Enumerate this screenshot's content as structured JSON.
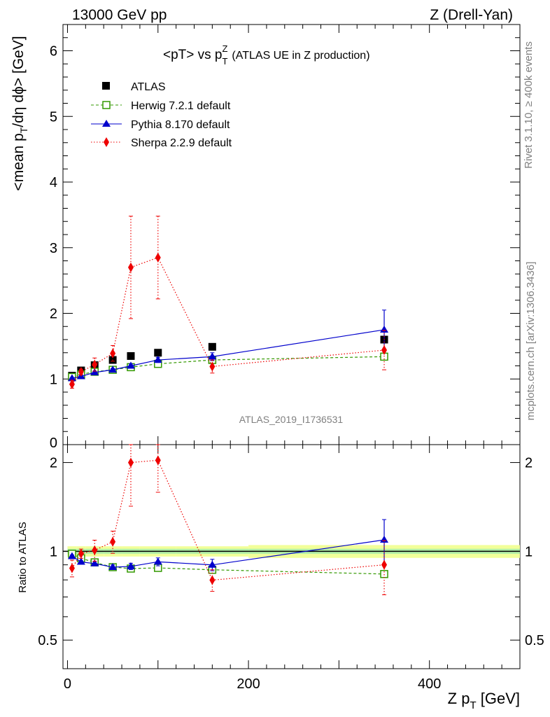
{
  "header": {
    "left": "13000 GeV pp",
    "right": "Z (Drell-Yan)"
  },
  "side": {
    "rivet": "Rivet 3.1.10, ≥ 400k events",
    "mcplots": "mcplots.cern.ch [arXiv:1306.3436]"
  },
  "chart_data": {
    "type": "scatter",
    "title_main": "<pT> vs p",
    "title_sup": "Z",
    "title_sub": "T",
    "title_note": "(ATLAS UE in Z production)",
    "analysis_id": "ATLAS_2019_I1736531",
    "ylabel_main": {
      "a": "<mean p",
      "sub": "T",
      "b": "/dη dϕ> [GeV]"
    },
    "ylabel_ratio": "Ratio to ATLAS",
    "xlabel": {
      "a": "Z p",
      "sub": "T",
      "b": " [GeV]"
    },
    "xlim": [
      -5,
      500
    ],
    "ylim_main": [
      0,
      6.4
    ],
    "ylim_ratio": [
      0.4,
      2.3
    ],
    "x_ticks": [
      "0",
      "200",
      "400"
    ],
    "y_ticks_main": [
      "0",
      "1",
      "2",
      "3",
      "4",
      "5",
      "6"
    ],
    "y_ticks_ratio": [
      "0.5",
      "1",
      "2"
    ],
    "reference": {
      "name": "ATLAS",
      "x": [
        5,
        15,
        30,
        50,
        70,
        100,
        160,
        350
      ],
      "values": [
        1.05,
        1.13,
        1.21,
        1.29,
        1.35,
        1.4,
        1.49,
        1.6
      ],
      "band_edges": [
        0,
        10,
        20,
        40,
        60,
        80,
        120,
        200,
        500
      ],
      "band_inner": [
        0.02,
        0.02,
        0.02,
        0.02,
        0.02,
        0.02,
        0.02,
        0.02
      ],
      "band_outer": [
        0.04,
        0.04,
        0.04,
        0.04,
        0.04,
        0.04,
        0.04,
        0.05
      ]
    },
    "series": [
      {
        "name": "Herwig 7.2.1 default",
        "color": "#339900",
        "style": "dashed",
        "marker": "open-square",
        "values": [
          1.03,
          1.07,
          1.11,
          1.14,
          1.18,
          1.23,
          1.29,
          1.34
        ],
        "errors": [
          0.01,
          0.01,
          0.01,
          0.01,
          0.01,
          0.01,
          0.01,
          0.02
        ]
      },
      {
        "name": "Pythia 8.170 default",
        "color": "#0000cc",
        "style": "solid",
        "marker": "triangle",
        "values": [
          1.01,
          1.04,
          1.1,
          1.14,
          1.2,
          1.29,
          1.34,
          1.75
        ],
        "errors": [
          0.01,
          0.01,
          0.02,
          0.02,
          0.03,
          0.04,
          0.06,
          0.3
        ]
      },
      {
        "name": "Sherpa 2.2.9 default",
        "color": "#ee0000",
        "style": "dotted",
        "marker": "diamond",
        "values": [
          0.92,
          1.11,
          1.22,
          1.39,
          2.7,
          2.85,
          1.19,
          1.44
        ],
        "errors": [
          0.06,
          0.04,
          0.1,
          0.12,
          0.78,
          0.63,
          0.1,
          0.3
        ]
      }
    ]
  }
}
